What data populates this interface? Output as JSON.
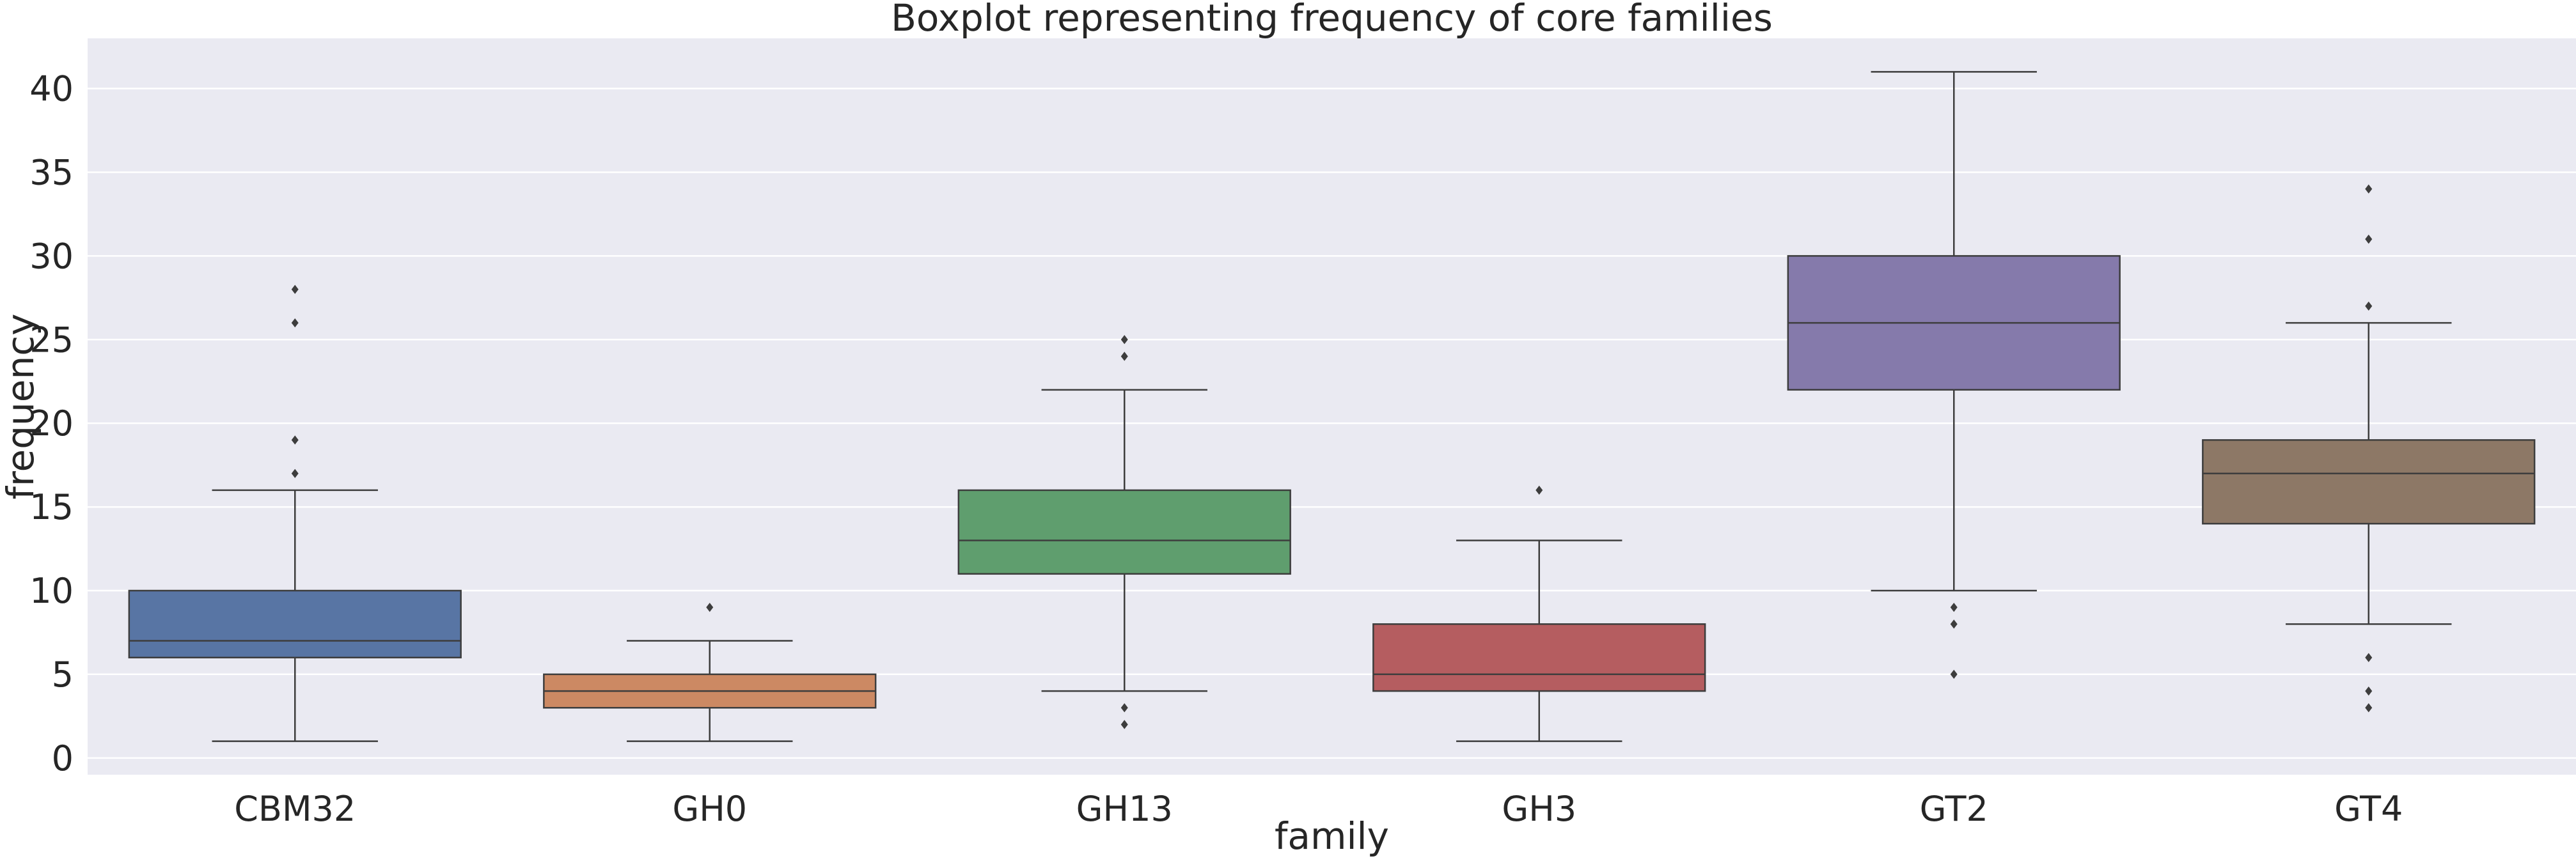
{
  "chart_data": {
    "type": "boxplot",
    "title": "Boxplot representing frequency of core families",
    "xlabel": "family",
    "ylabel": "frequency",
    "ylim": [
      -1,
      43
    ],
    "yticks": [
      0,
      5,
      10,
      15,
      20,
      25,
      30,
      35,
      40
    ],
    "grid": true,
    "background_color": "#eaeaf2",
    "grid_color": "#ffffff",
    "categories": [
      "CBM32",
      "GH0",
      "GH13",
      "GH3",
      "GT2",
      "GT4"
    ],
    "boxes": [
      {
        "family": "CBM32",
        "whisker_low": 1,
        "q1": 6,
        "median": 7,
        "q3": 10,
        "whisker_high": 16,
        "outliers": [
          17,
          19,
          26,
          28
        ],
        "color": "#5875a4"
      },
      {
        "family": "GH0",
        "whisker_low": 1,
        "q1": 3,
        "median": 4,
        "q3": 5,
        "whisker_high": 7,
        "outliers": [
          9
        ],
        "color": "#cc8963"
      },
      {
        "family": "GH13",
        "whisker_low": 4,
        "q1": 11,
        "median": 13,
        "q3": 16,
        "whisker_high": 22,
        "outliers": [
          2,
          3,
          24,
          25
        ],
        "color": "#5f9e6e"
      },
      {
        "family": "GH3",
        "whisker_low": 1,
        "q1": 4,
        "median": 5,
        "q3": 8,
        "whisker_high": 13,
        "outliers": [
          16
        ],
        "color": "#b55d60"
      },
      {
        "family": "GT2",
        "whisker_low": 10,
        "q1": 22,
        "median": 26,
        "q3": 30,
        "whisker_high": 41,
        "outliers": [
          5,
          8,
          9
        ],
        "color": "#857aab"
      },
      {
        "family": "GT4",
        "whisker_low": 8,
        "q1": 14,
        "median": 17,
        "q3": 19,
        "whisker_high": 26,
        "outliers": [
          3,
          4,
          6,
          27,
          31,
          34
        ],
        "color": "#8d7866"
      }
    ]
  }
}
